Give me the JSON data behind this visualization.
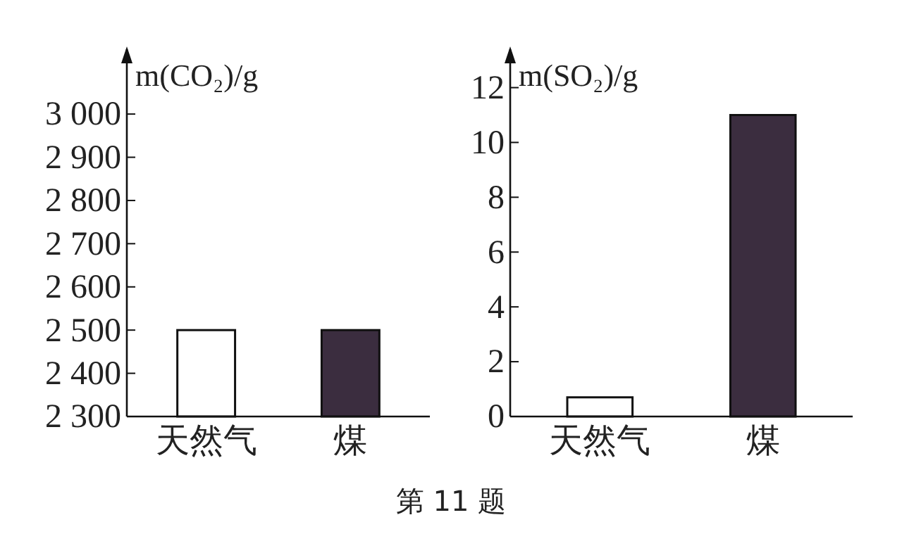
{
  "chart_data": [
    {
      "type": "bar",
      "ylabel": "m(CO₂)/g",
      "categories": [
        "天然气",
        "煤"
      ],
      "values": [
        2500,
        2500
      ],
      "colors": [
        "#ffffff",
        "#3b2d3f"
      ],
      "ylim": [
        2300,
        3150
      ],
      "yticks": [
        {
          "value": 2300,
          "label": "2 300"
        },
        {
          "value": 2400,
          "label": "2 400"
        },
        {
          "value": 2500,
          "label": "2 500"
        },
        {
          "value": 2600,
          "label": "2 600"
        },
        {
          "value": 2700,
          "label": "2 700"
        },
        {
          "value": 2800,
          "label": "2 800"
        },
        {
          "value": 2900,
          "label": "2 900"
        },
        {
          "value": 3000,
          "label": "3 000"
        }
      ],
      "grid": false,
      "annotations": [
        "第 11 题"
      ]
    },
    {
      "type": "bar",
      "ylabel": "m(SO₂)/g",
      "categories": [
        "天然气",
        "煤"
      ],
      "values": [
        0.7,
        11
      ],
      "colors": [
        "#ffffff",
        "#3b2d3f"
      ],
      "ylim": [
        0,
        13.4
      ],
      "yticks": [
        0,
        2,
        4,
        6,
        8,
        10,
        12
      ],
      "grid": false
    }
  ]
}
